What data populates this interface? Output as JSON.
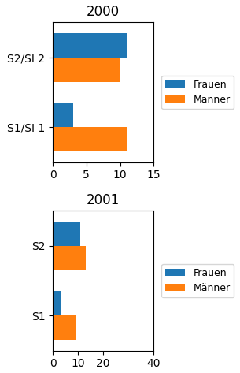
{
  "chart_data": [
    {
      "type": "bar",
      "orientation": "horizontal",
      "title": "2000",
      "categories": [
        "S1/SI 1",
        "S2/SI 2"
      ],
      "series": [
        {
          "name": "Frauen",
          "values": [
            3,
            11
          ]
        },
        {
          "name": "Männer",
          "values": [
            11,
            10
          ]
        }
      ],
      "xlim": [
        0,
        15
      ],
      "xticks": [
        0,
        5,
        10,
        15
      ],
      "legend": "center left"
    },
    {
      "type": "bar",
      "orientation": "horizontal",
      "title": "2001",
      "categories": [
        "S1",
        "S2"
      ],
      "series": [
        {
          "name": "Frauen",
          "values": [
            3,
            11
          ]
        },
        {
          "name": "Männer",
          "values": [
            9,
            13
          ]
        }
      ],
      "xlim": [
        0,
        40
      ],
      "xticks": [
        0,
        10,
        20,
        40
      ],
      "legend": "center left"
    }
  ]
}
